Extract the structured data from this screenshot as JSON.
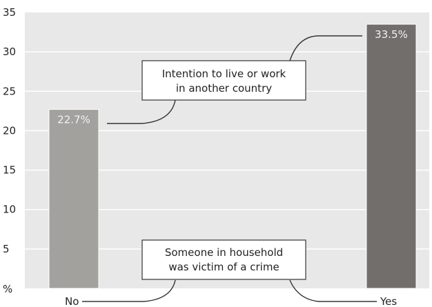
{
  "chart_data": {
    "type": "bar",
    "categories": [
      "No",
      "Yes"
    ],
    "values": [
      22.7,
      33.5
    ],
    "value_labels": [
      "22.7%",
      "33.5%"
    ],
    "bar_colors": [
      "#a3a19e",
      "#716e6b"
    ],
    "y_unit_label": "%",
    "yticks": [
      5,
      10,
      15,
      20,
      25,
      30,
      35
    ],
    "ylim": [
      0,
      35
    ],
    "grid": true,
    "background_color": "#e8e8e8",
    "gridline_color": "#ffffff",
    "annotations": {
      "top_box": [
        "Intention to live or work",
        "in another country"
      ],
      "bottom_box": [
        "Someone in household",
        "was victim of a crime"
      ]
    }
  }
}
